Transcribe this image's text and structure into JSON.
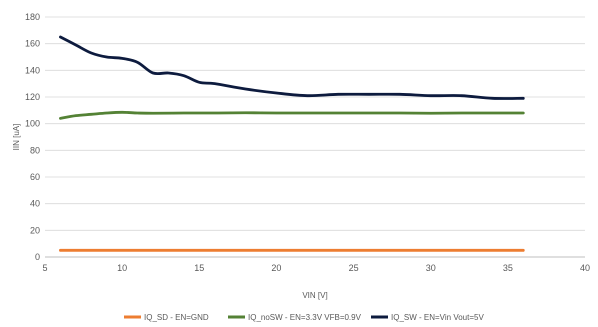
{
  "chart_data": {
    "type": "line",
    "title": "",
    "xlabel": "VIN [V]",
    "ylabel": "IIN [uA]",
    "xlim": [
      5,
      40
    ],
    "ylim": [
      0,
      180
    ],
    "xticks": [
      5,
      10,
      15,
      20,
      25,
      30,
      35,
      40
    ],
    "yticks": [
      0,
      20,
      40,
      60,
      80,
      100,
      120,
      140,
      160,
      180
    ],
    "grid": "horizontal",
    "legend_position": "bottom",
    "series": [
      {
        "name": "IQ_SD - EN=GND",
        "color": "#ED7D31",
        "x": [
          6,
          8,
          10,
          12,
          14,
          16,
          18,
          20,
          22,
          24,
          26,
          28,
          30,
          32,
          34,
          36
        ],
        "y": [
          5,
          5,
          5,
          5,
          5,
          5,
          5,
          5,
          5,
          5,
          5,
          5,
          5,
          5,
          5,
          5
        ]
      },
      {
        "name": "IQ_noSW - EN=3.3V VFB=0.9V",
        "color": "#548235",
        "x": [
          6,
          7,
          8,
          9,
          10,
          11,
          12,
          14,
          16,
          18,
          20,
          22,
          24,
          26,
          28,
          30,
          32,
          34,
          36
        ],
        "y": [
          104,
          106,
          107,
          108,
          108.5,
          108,
          107.8,
          108,
          108,
          108.2,
          108,
          108,
          108,
          108,
          108,
          107.8,
          108,
          108,
          108
        ]
      },
      {
        "name": "IQ_SW - EN=Vin Vout=5V",
        "color": "#0D1B3E",
        "x": [
          6,
          7,
          8,
          9,
          10,
          11,
          12,
          13,
          14,
          15,
          16,
          18,
          20,
          22,
          24,
          26,
          28,
          30,
          32,
          34,
          36
        ],
        "y": [
          165,
          159,
          153,
          150,
          149,
          146,
          138,
          138,
          136,
          131,
          130,
          126,
          123,
          121,
          122,
          122,
          122,
          121,
          121,
          119,
          119
        ]
      }
    ]
  }
}
